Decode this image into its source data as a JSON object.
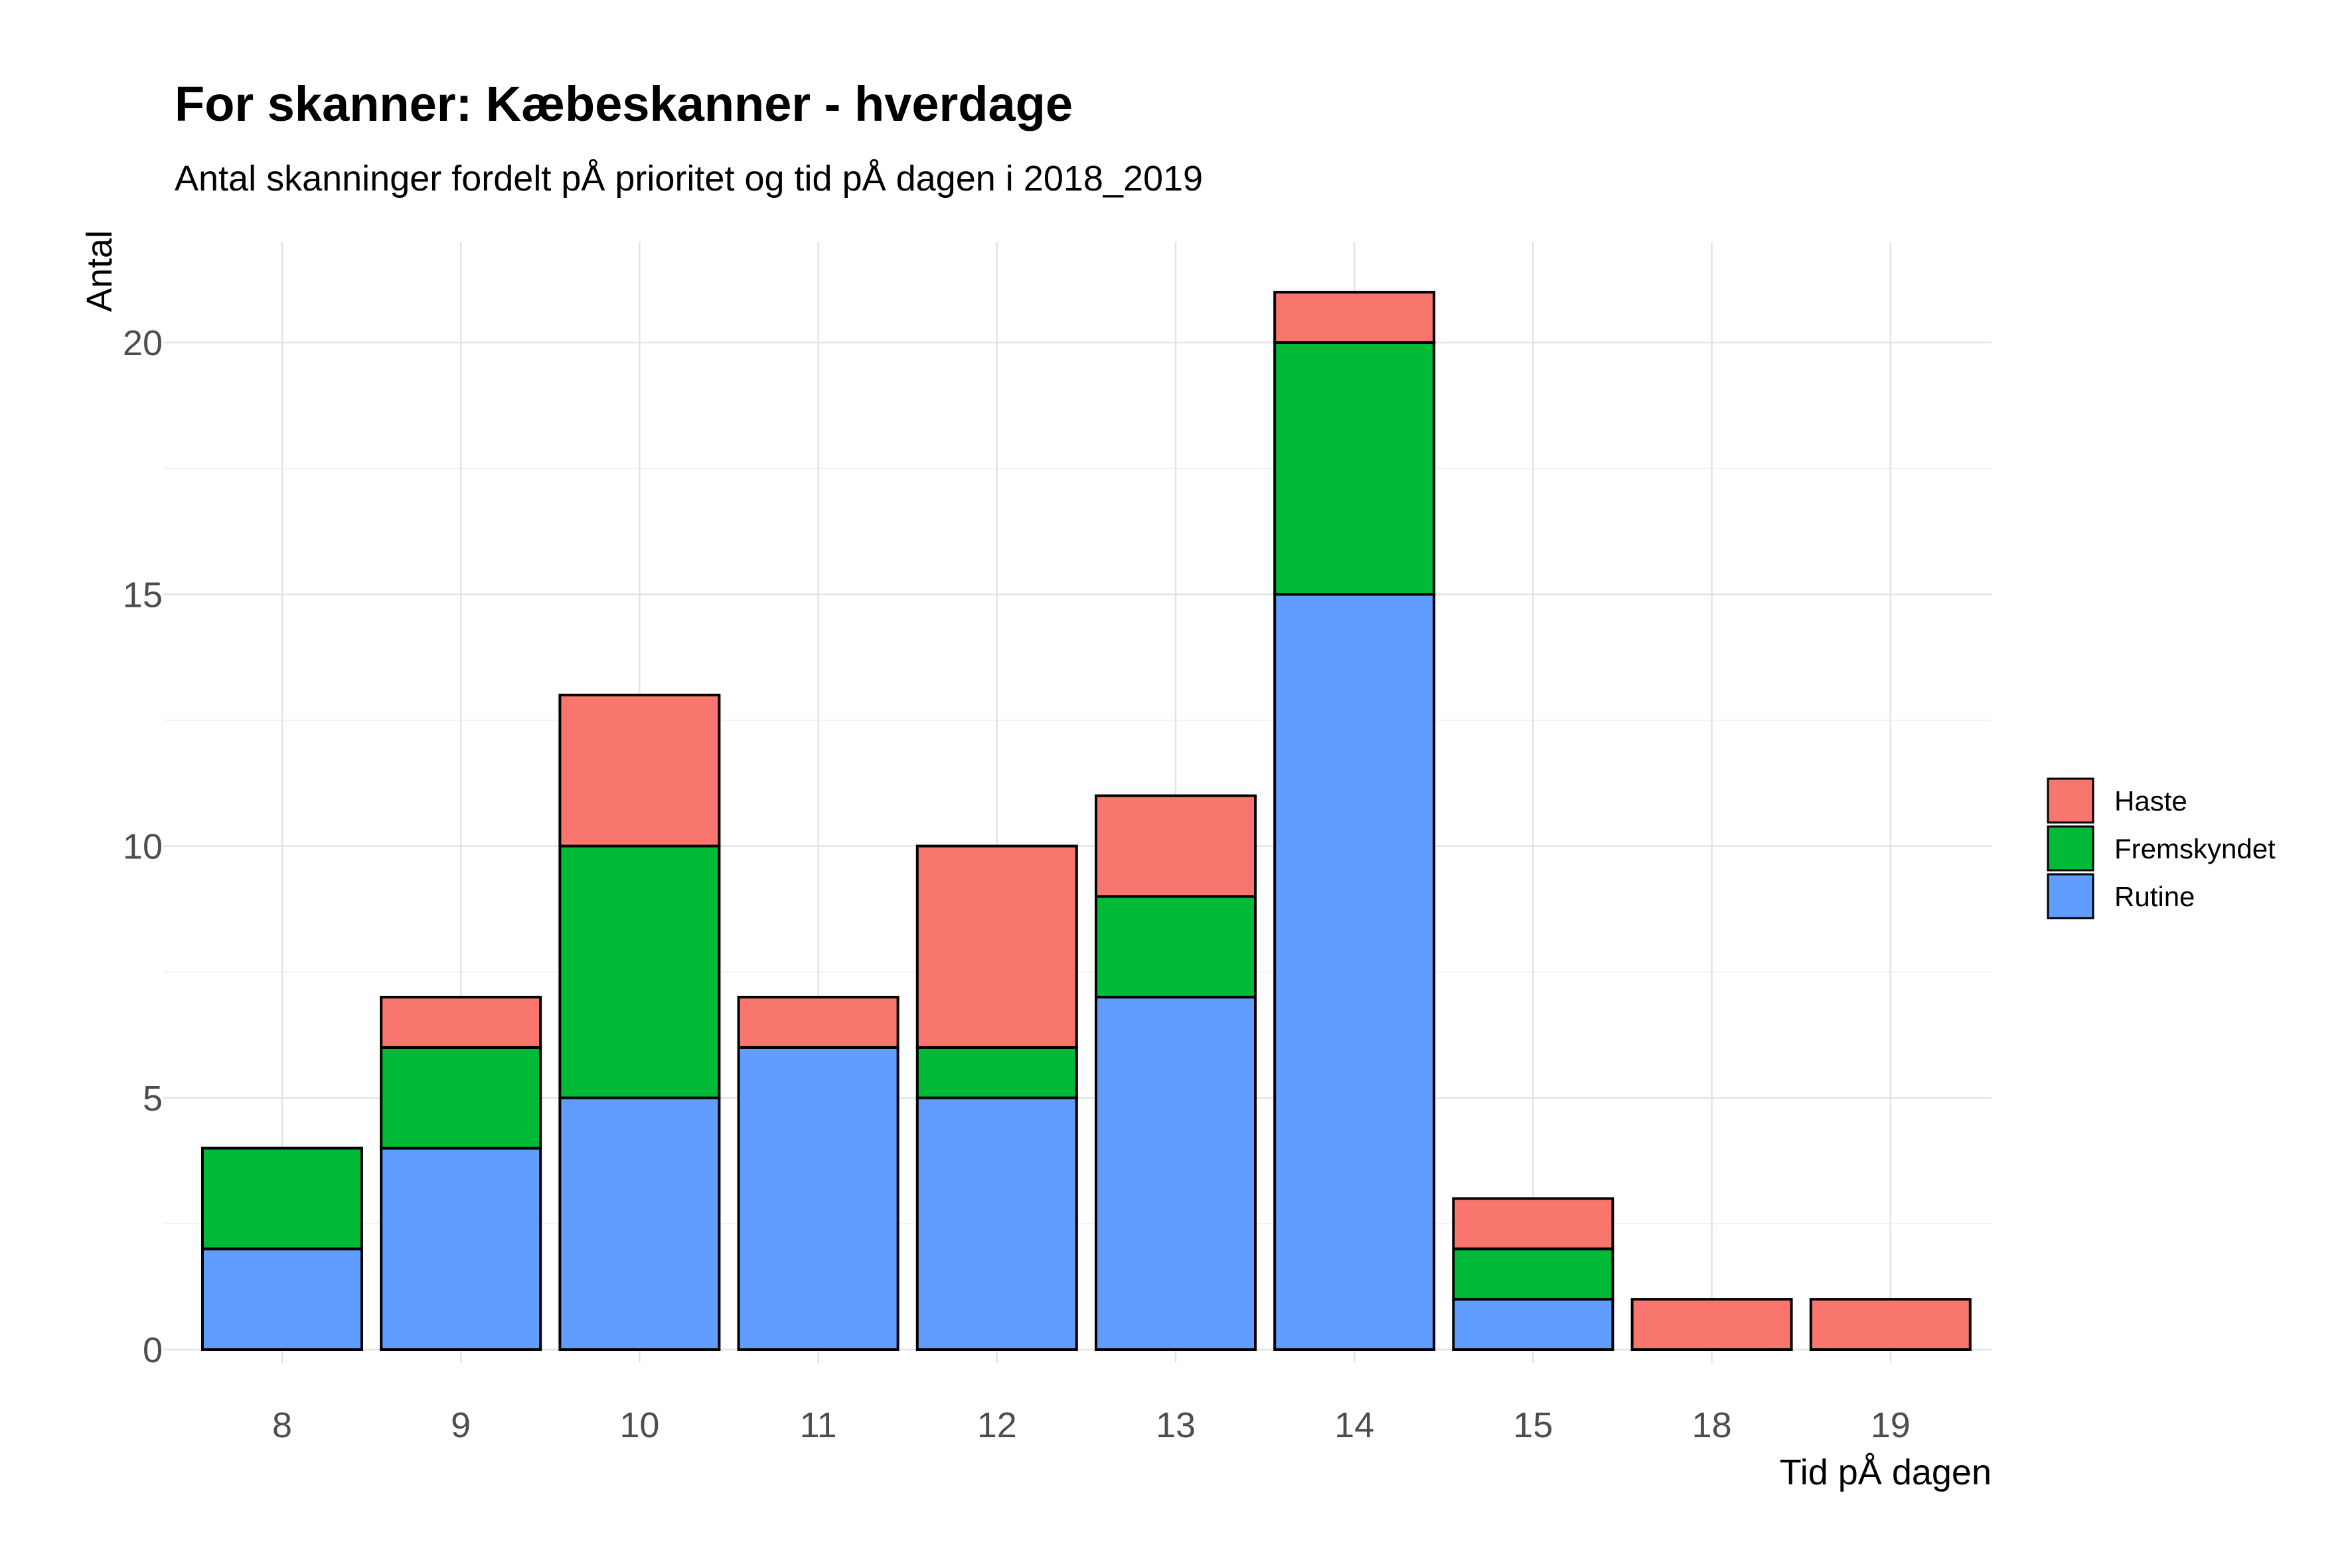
{
  "chart_data": {
    "type": "bar",
    "stacked": true,
    "title": "For skanner: Kæbeskanner - hverdage",
    "subtitle": "Antal skanninger fordelt pÅ prioritet og tid pÅ dagen i 2018_2019",
    "xlabel": "Tid pÅ dagen",
    "ylabel": "Antal",
    "categories": [
      "8",
      "9",
      "10",
      "11",
      "12",
      "13",
      "14",
      "15",
      "18",
      "19"
    ],
    "series": [
      {
        "name": "Rutine",
        "color": "#619CFF",
        "values": [
          2,
          4,
          5,
          6,
          5,
          7,
          15,
          1,
          0,
          0
        ]
      },
      {
        "name": "Fremskyndet",
        "color": "#00BA38",
        "values": [
          2,
          2,
          5,
          0,
          1,
          2,
          5,
          1,
          0,
          0
        ]
      },
      {
        "name": "Haste",
        "color": "#F8766D",
        "values": [
          0,
          1,
          3,
          1,
          4,
          2,
          1,
          1,
          1,
          1
        ]
      }
    ],
    "legend_order": [
      "Haste",
      "Fremskyndet",
      "Rutine"
    ],
    "ylim": [
      0,
      22
    ],
    "yticks": [
      0,
      5,
      10,
      15,
      20
    ],
    "grid": true,
    "legend_position": "right"
  }
}
